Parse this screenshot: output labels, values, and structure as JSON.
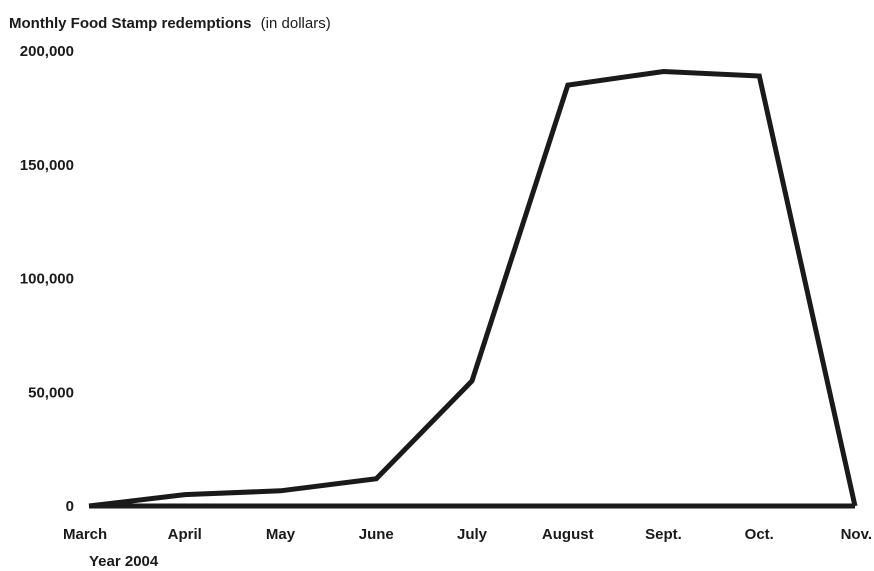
{
  "chart_data": {
    "type": "line",
    "title": "Monthly Food Stamp redemptions",
    "title_unit": "(in dollars)",
    "xlabel": "Year 2004",
    "ylabel": "",
    "categories": [
      "March",
      "April",
      "May",
      "June",
      "July",
      "August",
      "Sept.",
      "Oct.",
      "Nov."
    ],
    "series": [
      {
        "values": [
          0,
          5000,
          6700,
          12000,
          55000,
          185000,
          191000,
          189000,
          0
        ]
      }
    ],
    "ylim": [
      0,
      200000
    ],
    "yticks": [
      0,
      50000,
      100000,
      150000,
      200000
    ],
    "ytick_labels": [
      "0",
      "50,000",
      "100,000",
      "150,000",
      "200,000"
    ],
    "grid": false,
    "line_color": "#1a1a1a"
  }
}
